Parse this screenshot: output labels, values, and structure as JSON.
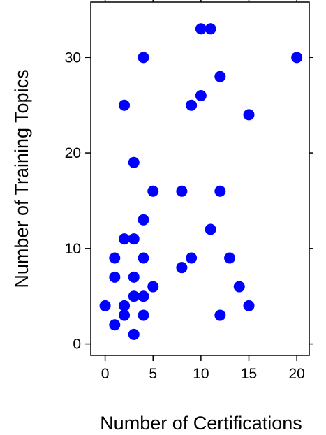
{
  "chart_data": {
    "type": "scatter",
    "title": "",
    "xlabel": "Number of Certifications",
    "ylabel": "Number of Training Topics",
    "xlim": [
      -1.5,
      21.3
    ],
    "ylim": [
      -1.2,
      35.8
    ],
    "xticks": [
      0,
      5,
      10,
      15,
      20
    ],
    "yticks": [
      0,
      10,
      20,
      30
    ],
    "xtick_labels": [
      "0",
      "5",
      "10",
      "15",
      "20"
    ],
    "ytick_labels": [
      "0",
      "10",
      "20",
      "30"
    ],
    "grid": false,
    "marker_color": "#0000ff",
    "series": [
      {
        "points": [
          [
            0,
            4
          ],
          [
            1,
            2
          ],
          [
            1,
            7
          ],
          [
            1,
            9
          ],
          [
            2,
            3
          ],
          [
            2,
            4
          ],
          [
            2,
            11
          ],
          [
            2,
            25
          ],
          [
            3,
            1
          ],
          [
            3,
            5
          ],
          [
            3,
            7
          ],
          [
            3,
            11
          ],
          [
            3,
            19
          ],
          [
            4,
            3
          ],
          [
            4,
            5
          ],
          [
            4,
            9
          ],
          [
            4,
            13
          ],
          [
            4,
            30
          ],
          [
            5,
            6
          ],
          [
            5,
            16
          ],
          [
            8,
            8
          ],
          [
            8,
            16
          ],
          [
            9,
            9
          ],
          [
            9,
            25
          ],
          [
            10,
            26
          ],
          [
            10,
            33
          ],
          [
            11,
            12
          ],
          [
            11,
            33
          ],
          [
            12,
            3
          ],
          [
            12,
            16
          ],
          [
            12,
            28
          ],
          [
            13,
            9
          ],
          [
            14,
            6
          ],
          [
            15,
            4
          ],
          [
            15,
            24
          ],
          [
            20,
            30
          ]
        ]
      }
    ]
  }
}
